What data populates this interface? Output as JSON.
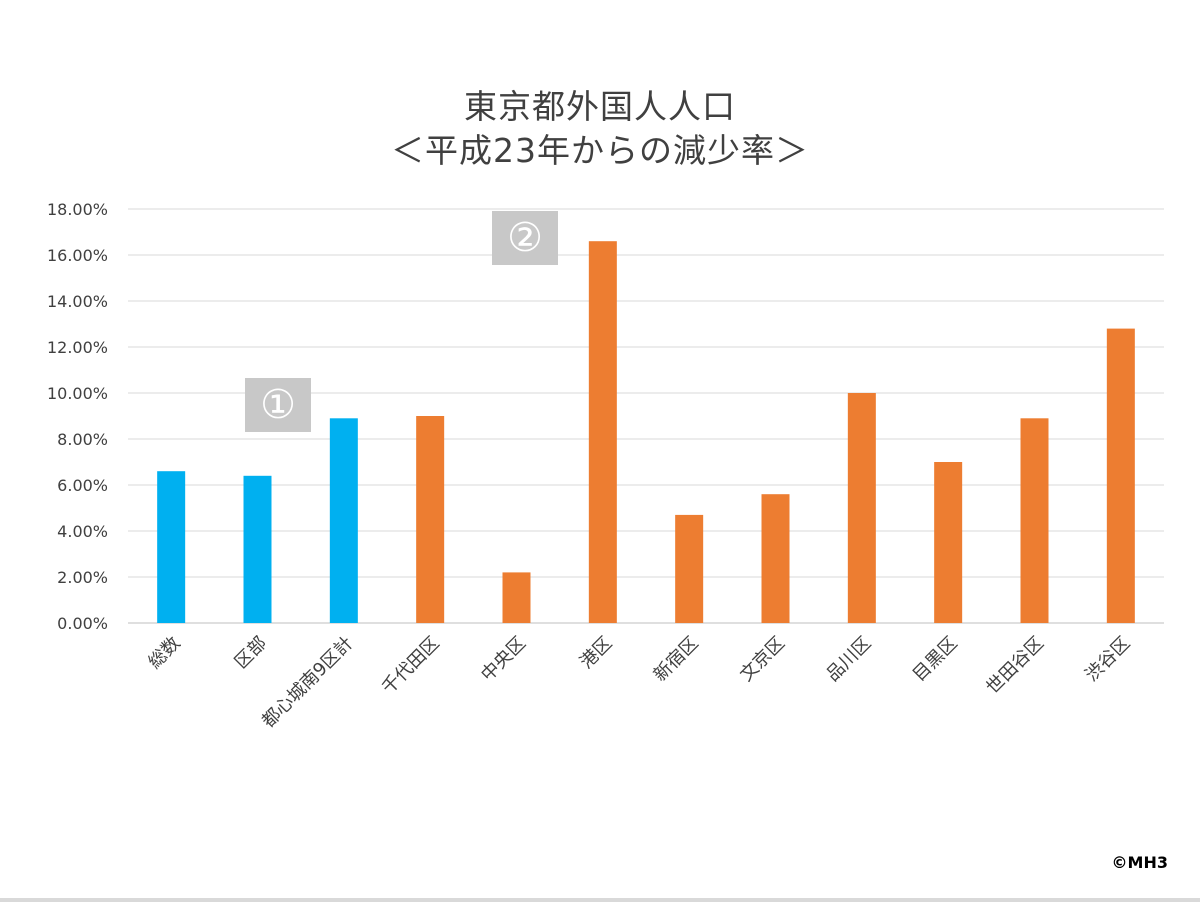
{
  "chart_data": {
    "type": "bar",
    "title": [
      "東京都外国人人口",
      "＜平成23年からの減少率＞"
    ],
    "categories": [
      "総数",
      "区部",
      "都心城南9区計",
      "千代田区",
      "中央区",
      "港区",
      "新宿区",
      "文京区",
      "品川区",
      "目黒区",
      "世田谷区",
      "渋谷区"
    ],
    "values": [
      0.066,
      0.064,
      0.089,
      0.09,
      0.022,
      0.166,
      0.047,
      0.056,
      0.1,
      0.07,
      0.089,
      0.128
    ],
    "bar_colors": [
      "#00b0f0",
      "#00b0f0",
      "#00b0f0",
      "#ed7d31",
      "#ed7d31",
      "#ed7d31",
      "#ed7d31",
      "#ed7d31",
      "#ed7d31",
      "#ed7d31",
      "#ed7d31",
      "#ed7d31"
    ],
    "ylim": [
      0,
      0.18
    ],
    "yticks": [
      0,
      0.02,
      0.04,
      0.06,
      0.08,
      0.1,
      0.12,
      0.14,
      0.16,
      0.18
    ],
    "ytick_labels": [
      "0.00%",
      "2.00%",
      "4.00%",
      "6.00%",
      "8.00%",
      "10.00%",
      "12.00%",
      "14.00%",
      "16.00%",
      "18.00%"
    ],
    "xlabel": "",
    "ylabel": "",
    "grid": true,
    "legend": "none"
  },
  "annotations": {
    "marker1": "①",
    "marker2": "②"
  },
  "copyright": "©MH3",
  "colors": {
    "blue_bar": "#00b0f0",
    "orange_bar": "#ed7d31",
    "gridline": "#d9d9d9",
    "marker_bg": "#c8c8c8",
    "text": "#404040"
  }
}
